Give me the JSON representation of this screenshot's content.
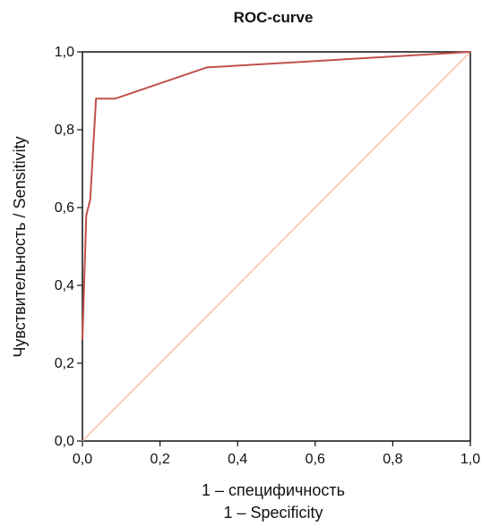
{
  "chart_data": {
    "type": "line",
    "title": "ROC-curve",
    "xlabel": [
      "1 – специфичность",
      "1 – Specificity"
    ],
    "ylabel": "Чувствительность / Sensitivity",
    "xlim": [
      0,
      1
    ],
    "ylim": [
      0,
      1
    ],
    "x_ticks": [
      "0,0",
      "0,2",
      "0,4",
      "0,6",
      "0,8",
      "1,0"
    ],
    "y_ticks": [
      "0,0",
      "0,2",
      "0,4",
      "0,6",
      "0,8",
      "1,0"
    ],
    "grid": false,
    "series": [
      {
        "role": "roc-curve",
        "color": "#c0504d",
        "points": [
          [
            0.0,
            0.26
          ],
          [
            0.01,
            0.58
          ],
          [
            0.02,
            0.62
          ],
          [
            0.035,
            0.88
          ],
          [
            0.085,
            0.88
          ],
          [
            0.32,
            0.96
          ],
          [
            1.0,
            1.0
          ]
        ]
      },
      {
        "role": "reference-diagonal",
        "color": "#f4b6a3",
        "points": [
          [
            0.0,
            0.0
          ],
          [
            1.0,
            1.0
          ]
        ]
      }
    ]
  }
}
